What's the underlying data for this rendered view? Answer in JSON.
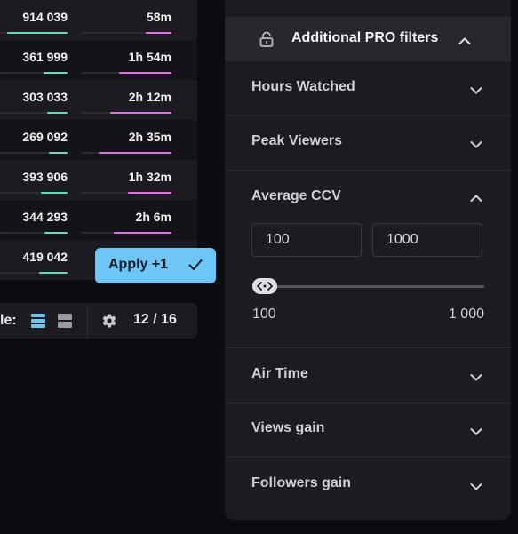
{
  "table": {
    "rows": [
      {
        "value": "914 039",
        "time": "58m",
        "bar1": 0.9,
        "bar2": 0.28
      },
      {
        "value": "361 999",
        "time": "1h 54m",
        "bar1": 0.35,
        "bar2": 0.58
      },
      {
        "value": "303 033",
        "time": "2h 12m",
        "bar1": 0.3,
        "bar2": 0.68
      },
      {
        "value": "269 092",
        "time": "2h 35m",
        "bar1": 0.27,
        "bar2": 0.8
      },
      {
        "value": "393 906",
        "time": "1h 32m",
        "bar1": 0.39,
        "bar2": 0.48
      },
      {
        "value": "344 293",
        "time": "2h 6m",
        "bar1": 0.34,
        "bar2": 0.64
      },
      {
        "value": "419 042",
        "time": "",
        "bar1": 0.42,
        "bar2": 0
      }
    ]
  },
  "apply_button": {
    "label": "Apply ",
    "count": "+1"
  },
  "view_bar": {
    "label": "le:",
    "count": "12 / 16"
  },
  "pro_filters": {
    "title": "Additional PRO filters",
    "sections": {
      "hours_watched": "Hours Watched",
      "peak_viewers": "Peak Viewers",
      "average_ccv": "Average CCV",
      "air_time": "Air Time",
      "views_gain": "Views gain",
      "followers_gain": "Followers gain"
    },
    "ccv": {
      "min_value": "100",
      "max_value": "1000",
      "range_min": "100",
      "range_max": "1 000"
    }
  },
  "colors": {
    "accent": "#6ec6f7",
    "bar_green": "#5fe0b7",
    "bar_pink": "#e070e6",
    "panel_bg": "#1b1b20"
  }
}
